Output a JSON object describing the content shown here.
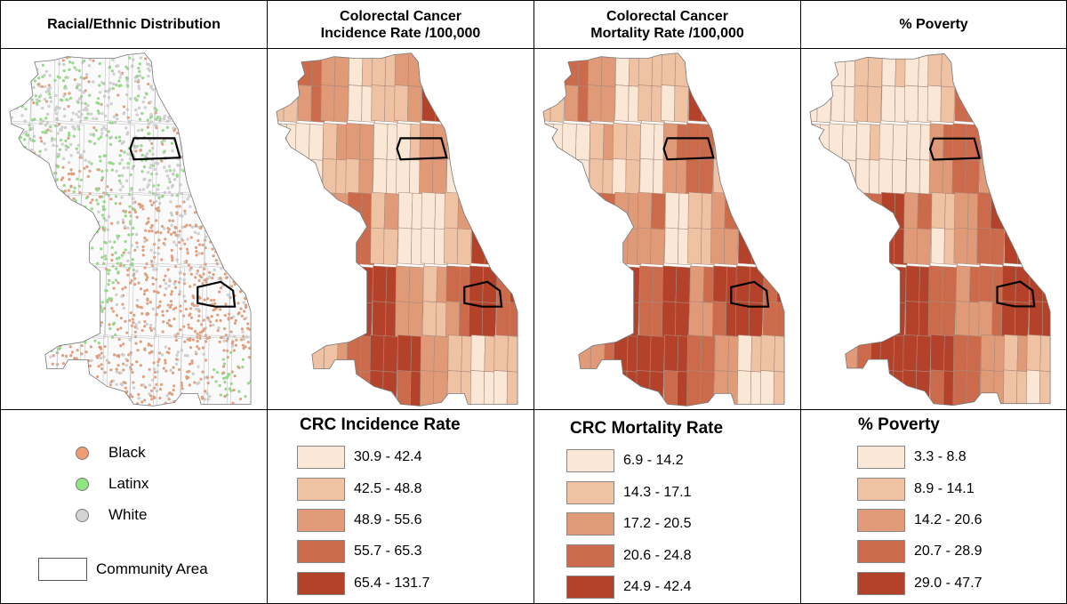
{
  "panels": [
    {
      "title_lines": [
        "Racial/Ethnic Distribution"
      ],
      "type": "dots"
    },
    {
      "title_lines": [
        "Colorectal Cancer",
        "Incidence Rate /100,000"
      ],
      "type": "choropleth",
      "legend_title": "CRC Incidence Rate",
      "legend": [
        "30.9 - 42.4",
        "42.5 - 48.8",
        "48.9 - 55.6",
        "55.7 - 65.3",
        "65.4 - 131.7"
      ]
    },
    {
      "title_lines": [
        "Colorectal Cancer",
        "Mortality Rate /100,000"
      ],
      "type": "choropleth",
      "legend_title": "CRC Mortality Rate",
      "legend": [
        "6.9 - 14.2",
        "14.3 - 17.1",
        "17.2 - 20.5",
        "20.6 - 24.8",
        "24.9 - 42.4"
      ]
    },
    {
      "title_lines": [
        "% Poverty"
      ],
      "type": "choropleth",
      "legend_title": "% Poverty",
      "legend": [
        "3.3 - 8.8",
        "8.9 - 14.1",
        "14.2 - 20.6",
        "20.7 - 28.9",
        "29.0 - 47.7"
      ]
    }
  ],
  "race_legend": [
    {
      "label": "Black",
      "color": "#ef9d75"
    },
    {
      "label": "Latinx",
      "color": "#8fe57f"
    },
    {
      "label": "White",
      "color": "#d4d4d4"
    }
  ],
  "community_area_label": "Community Area",
  "class_colors": [
    "#fbe7d6",
    "#f0c2a4",
    "#e09a78",
    "#cc6a4c",
    "#b4422a"
  ],
  "map_class_indices": {
    "incidence": [
      1,
      3,
      2,
      0,
      1,
      2,
      4,
      3,
      1,
      4,
      0,
      0,
      1,
      2,
      0,
      0,
      2,
      1,
      3,
      4,
      0,
      0,
      2,
      3,
      1,
      0,
      0,
      1,
      4,
      2,
      3,
      1,
      0,
      4,
      4,
      2,
      1,
      3,
      4,
      3,
      2,
      1,
      1,
      3,
      4,
      4,
      2,
      1,
      0,
      1
    ],
    "mortality": [
      1,
      3,
      2,
      0,
      1,
      1,
      4,
      3,
      0,
      3,
      0,
      0,
      1,
      1,
      0,
      2,
      3,
      2,
      4,
      2,
      0,
      0,
      3,
      2,
      2,
      0,
      1,
      2,
      4,
      3,
      3,
      2,
      1,
      4,
      3,
      4,
      2,
      4,
      4,
      3,
      3,
      2,
      2,
      4,
      4,
      4,
      3,
      2,
      0,
      1
    ],
    "poverty": [
      0,
      0,
      1,
      0,
      0,
      1,
      3,
      2,
      0,
      2,
      0,
      0,
      0,
      0,
      0,
      2,
      3,
      3,
      4,
      1,
      0,
      0,
      3,
      4,
      2,
      1,
      2,
      3,
      4,
      2,
      4,
      3,
      3,
      4,
      4,
      3,
      2,
      3,
      4,
      4,
      3,
      2,
      3,
      4,
      4,
      4,
      3,
      2,
      1,
      1
    ]
  }
}
